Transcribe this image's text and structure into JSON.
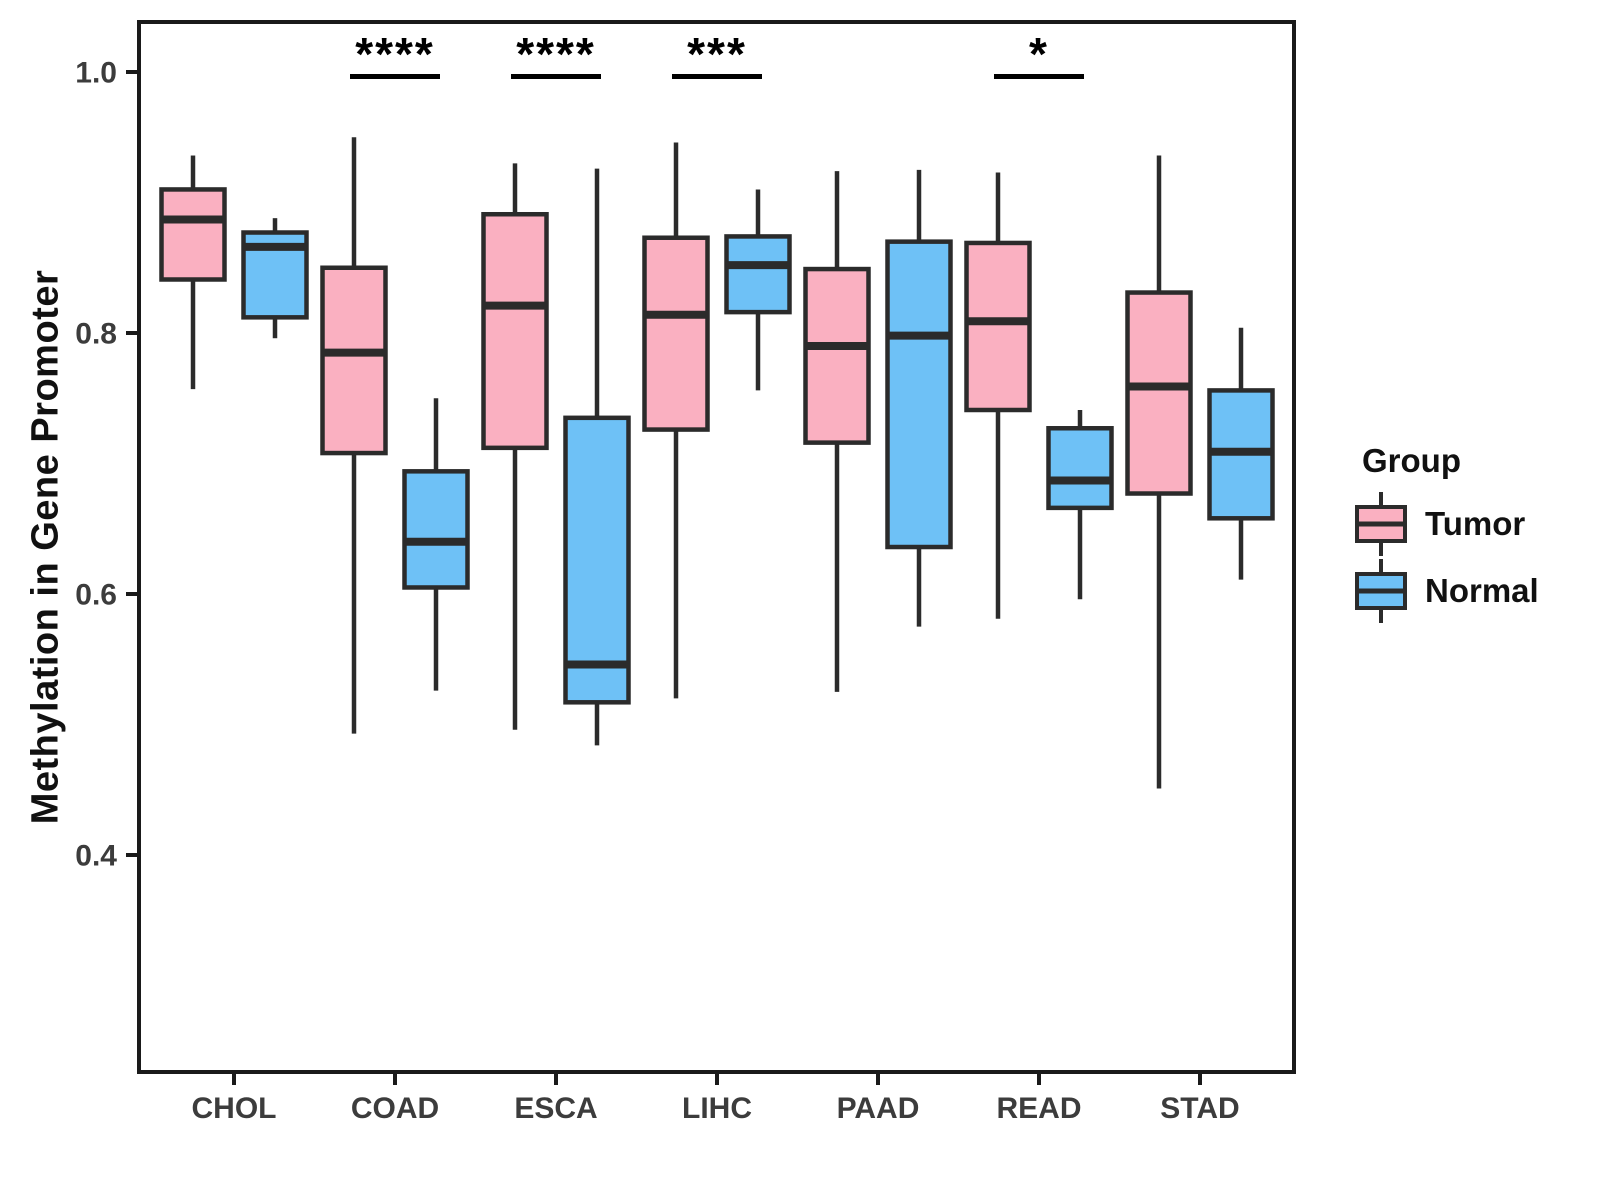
{
  "chart_data": {
    "type": "grouped_boxplot",
    "title": "",
    "xlabel": "",
    "ylabel": "Methylation in Gene Promoter",
    "categories": [
      "CHOL",
      "COAD",
      "ESCA",
      "LIHC",
      "PAAD",
      "READ",
      "STAD"
    ],
    "groups": [
      {
        "name": "Tumor",
        "fill": "#FAB0C1"
      },
      {
        "name": "Normal",
        "fill": "#6EC1F6"
      }
    ],
    "y_axis": {
      "ticks": [
        1.0,
        0.8,
        0.6,
        0.4
      ],
      "tick_labels": [
        "1.0",
        "0.8",
        "0.6",
        "0.4"
      ],
      "range": [
        0.23,
        1.04
      ],
      "grid": "off"
    },
    "legend": {
      "title": "Group",
      "position": "right"
    },
    "series": [
      {
        "group": "Tumor",
        "boxes": [
          {
            "category": "CHOL",
            "low": 0.757,
            "q1": 0.841,
            "median": 0.887,
            "q3": 0.91,
            "high": 0.936
          },
          {
            "category": "COAD",
            "low": 0.493,
            "q1": 0.708,
            "median": 0.785,
            "q3": 0.85,
            "high": 0.95
          },
          {
            "category": "ESCA",
            "low": 0.496,
            "q1": 0.712,
            "median": 0.821,
            "q3": 0.891,
            "high": 0.93
          },
          {
            "category": "LIHC",
            "low": 0.52,
            "q1": 0.726,
            "median": 0.814,
            "q3": 0.873,
            "high": 0.946
          },
          {
            "category": "PAAD",
            "low": 0.525,
            "q1": 0.716,
            "median": 0.79,
            "q3": 0.849,
            "high": 0.924
          },
          {
            "category": "READ",
            "low": 0.581,
            "q1": 0.741,
            "median": 0.809,
            "q3": 0.869,
            "high": 0.923
          },
          {
            "category": "STAD",
            "low": 0.451,
            "q1": 0.677,
            "median": 0.759,
            "q3": 0.831,
            "high": 0.936
          }
        ]
      },
      {
        "group": "Normal",
        "boxes": [
          {
            "category": "CHOL",
            "low": 0.796,
            "q1": 0.812,
            "median": 0.866,
            "q3": 0.877,
            "high": 0.888
          },
          {
            "category": "COAD",
            "low": 0.526,
            "q1": 0.605,
            "median": 0.64,
            "q3": 0.694,
            "high": 0.75
          },
          {
            "category": "ESCA",
            "low": 0.484,
            "q1": 0.517,
            "median": 0.546,
            "q3": 0.735,
            "high": 0.926
          },
          {
            "category": "LIHC",
            "low": 0.756,
            "q1": 0.816,
            "median": 0.852,
            "q3": 0.874,
            "high": 0.91
          },
          {
            "category": "PAAD",
            "low": 0.575,
            "q1": 0.636,
            "median": 0.798,
            "q3": 0.87,
            "high": 0.925
          },
          {
            "category": "READ",
            "low": 0.596,
            "q1": 0.666,
            "median": 0.687,
            "q3": 0.727,
            "high": 0.741
          },
          {
            "category": "STAD",
            "low": 0.611,
            "q1": 0.658,
            "median": 0.709,
            "q3": 0.756,
            "high": 0.804
          }
        ]
      }
    ],
    "significance": [
      {
        "category": "COAD",
        "label": "****"
      },
      {
        "category": "ESCA",
        "label": "****"
      },
      {
        "category": "LIHC",
        "label": "***"
      },
      {
        "category": "READ",
        "label": "*"
      }
    ]
  },
  "style": {
    "background": "#FFFFFF",
    "box_stroke": "#2B2B2B",
    "axis_color": "#1A1A1A",
    "tick_label_color": "#3C3C3C",
    "text_color": "#111111"
  }
}
